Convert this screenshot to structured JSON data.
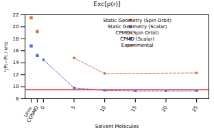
{
  "chart_data": {
    "type": "line",
    "title": "Exc[ρ(r)]",
    "xlabel": "Solvent Molecules",
    "ylabel": "¹JPt−Pt / kHz",
    "xlim": [
      -3,
      27
    ],
    "xticks": [
      {
        "value": -2,
        "label": "Univ."
      },
      {
        "value": -1,
        "label": "COSMO"
      },
      0,
      5,
      10,
      15,
      20,
      25
    ],
    "ylim": [
      8,
      22
    ],
    "yticks": [
      8,
      10,
      12,
      14,
      16,
      18,
      20,
      22
    ],
    "grid": false,
    "legend": "upper right",
    "series": [
      {
        "name": "Static Geometry (Spin Orbit)",
        "type": "scatter",
        "marker": "square",
        "color": "#e07050",
        "x": [
          -2,
          -1
        ],
        "values": [
          21.5,
          19.2
        ]
      },
      {
        "name": "Static Geometry (Scalar)",
        "type": "scatter",
        "marker": "square",
        "color": "#5070e0",
        "x": [
          -2,
          -1
        ],
        "values": [
          16.8,
          15.2
        ]
      },
      {
        "name": "CPMD (Spin Orbit)",
        "type": "line",
        "marker": "square",
        "line_style": "dashed",
        "color": "#e07050",
        "x": [
          5,
          10,
          25
        ],
        "values": [
          14.8,
          12.2,
          12.3
        ]
      },
      {
        "name": "CPMD (Scalar)",
        "type": "line",
        "marker": "square",
        "line_style": "dashed",
        "color": "#5070e0",
        "x": [
          0,
          5,
          10,
          15,
          20,
          25
        ],
        "values": [
          14.5,
          9.8,
          9.4,
          9.3,
          9.3,
          9.3
        ]
      },
      {
        "name": "Experimental",
        "type": "line",
        "line_style": "solid",
        "color": "#e03030",
        "x": [
          -3,
          27
        ],
        "values": [
          9.5,
          9.5
        ]
      }
    ]
  }
}
